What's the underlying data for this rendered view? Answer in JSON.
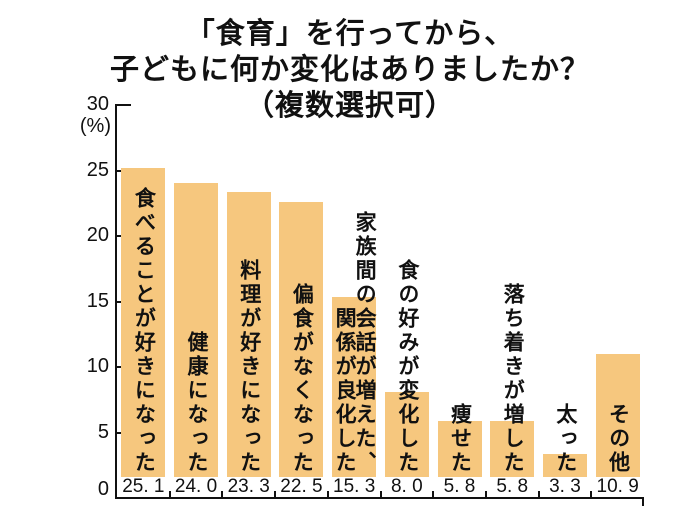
{
  "meta": {
    "background_color": "#ffffff",
    "bar_color": "#F6C77E",
    "axis_color": "#111111",
    "text_color": "#111111"
  },
  "title": {
    "lines": [
      "「食育」を行ってから、",
      "子どもに何か変化はありましたか？",
      "（複数選択可）"
    ]
  },
  "y_axis": {
    "unit": "(%)",
    "tick_labels": [
      "0",
      "5",
      "10",
      "15",
      "20",
      "25",
      "30"
    ]
  },
  "chart_data": {
    "type": "bar",
    "title": "「食育」を行ってから、子どもに何か変化はありましたか？（複数選択可）",
    "xlabel": "",
    "ylabel": "(%)",
    "ylim": [
      0,
      30
    ],
    "yticks": [
      0,
      5,
      10,
      15,
      20,
      25,
      30
    ],
    "grid": false,
    "legend": false,
    "bar_color": "#F6C77E",
    "categories": [
      "食べることが好きになった",
      "健康になった",
      "料理が好きになった",
      "偏食がなくなった",
      "家族間の会話が増えた、関係が良化した",
      "食の好みが変化した",
      "痩せた",
      "落ち着きが増した",
      "太った",
      "その他"
    ],
    "category_display": [
      "食べることが好きになった",
      "健康になった",
      "料理が好きになった",
      "偏食がなくなった",
      "家族間の会話が増えた、\n関係が良化した",
      "食の好みが変化した",
      "痩せた",
      "落ち着きが増した",
      "太った",
      "その他"
    ],
    "values": [
      25.1,
      24.0,
      23.3,
      22.5,
      15.3,
      8.0,
      5.8,
      5.8,
      3.3,
      10.9
    ],
    "value_labels": [
      "25. 1",
      "24. 0",
      "23. 3",
      "22. 5",
      "15. 3",
      "8. 0",
      "5. 8",
      "5. 8",
      "3. 3",
      "10. 9"
    ]
  }
}
